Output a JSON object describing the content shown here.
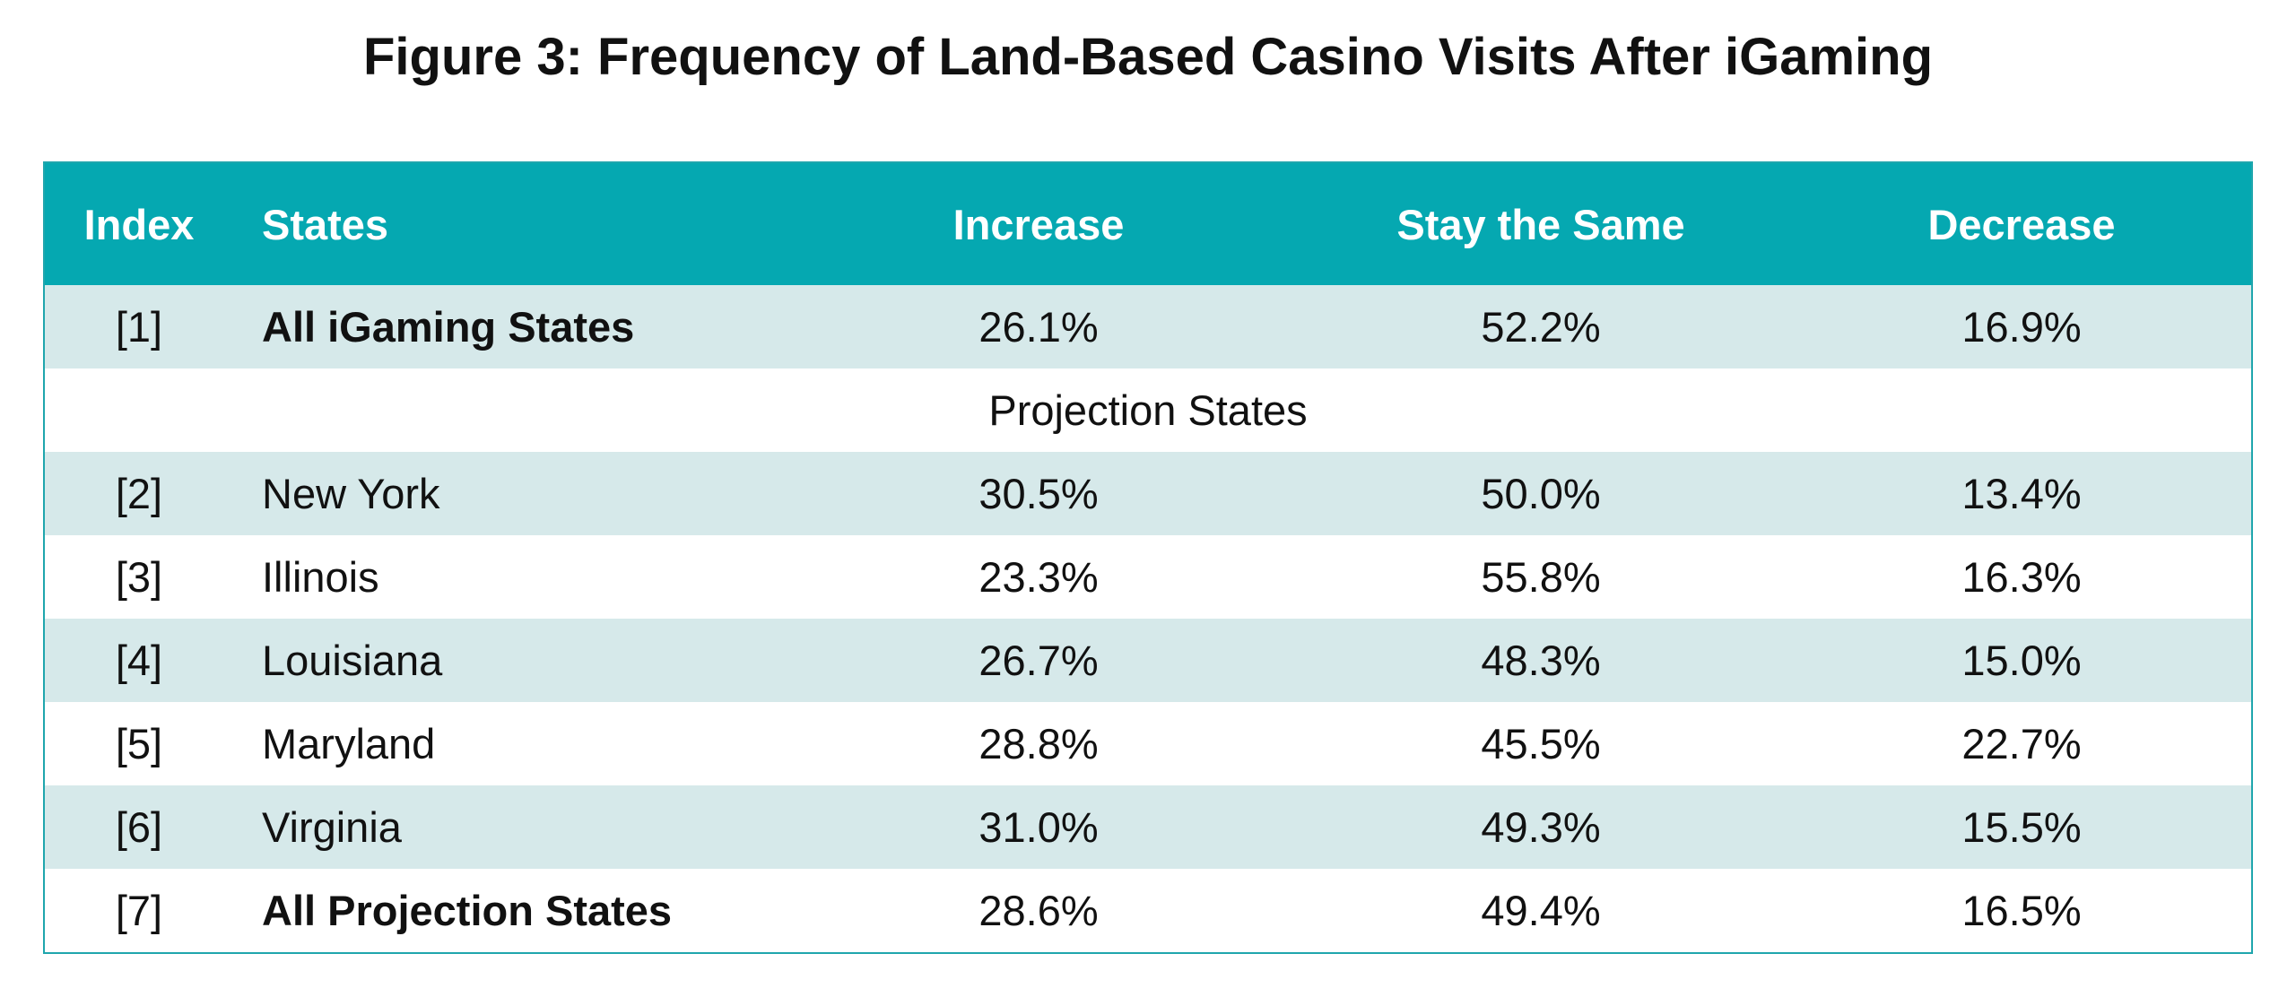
{
  "chart_data": {
    "type": "table",
    "title": "Figure 3: Frequency of Land-Based Casino Visits After iGaming",
    "columns": [
      "Index",
      "States",
      "Increase",
      "Stay the Same",
      "Decrease"
    ],
    "rows": [
      {
        "index": "[1]",
        "state": "All iGaming States",
        "increase": "26.1%",
        "same": "52.2%",
        "decrease": "16.9%",
        "bold": true
      },
      {
        "section": "Projection States"
      },
      {
        "index": "[2]",
        "state": "New York",
        "increase": "30.5%",
        "same": "50.0%",
        "decrease": "13.4%"
      },
      {
        "index": "[3]",
        "state": "Illinois",
        "increase": "23.3%",
        "same": "55.8%",
        "decrease": "16.3%"
      },
      {
        "index": "[4]",
        "state": "Louisiana",
        "increase": "26.7%",
        "same": "48.3%",
        "decrease": "15.0%"
      },
      {
        "index": "[5]",
        "state": "Maryland",
        "increase": "28.8%",
        "same": "45.5%",
        "decrease": "22.7%"
      },
      {
        "index": "[6]",
        "state": "Virginia",
        "increase": "31.0%",
        "same": "49.3%",
        "decrease": "15.5%"
      },
      {
        "index": "[7]",
        "state": "All Projection States",
        "increase": "28.6%",
        "same": "49.4%",
        "decrease": "16.5%",
        "bold": true
      }
    ]
  },
  "colors": {
    "header_bg": "#05a8b1",
    "row_shade": "#d6e9ea",
    "border": "#1fa6ad"
  }
}
